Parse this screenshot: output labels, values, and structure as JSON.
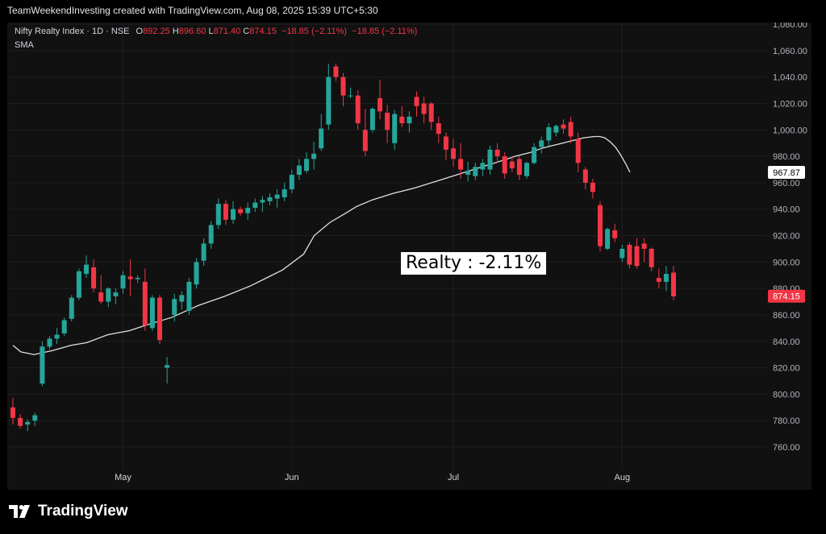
{
  "header": {
    "text": "TeamWeekendInvesting created with TradingView.com, Aug 08, 2025 15:39 UTC+5:30"
  },
  "legend": {
    "symbol": "Nifty Realty Index · 1D · NSE",
    "o_label": "O",
    "o_value": "892.25",
    "h_label": "H",
    "h_value": "896.60",
    "l_label": "L",
    "l_value": "871.40",
    "c_label": "C",
    "c_value": "874.15",
    "change": "−18.85 (−2.11%)",
    "change2": "−18.85 (−2.11%)",
    "indicator": "SMA"
  },
  "annotation": {
    "text": "Realty : -2.11%"
  },
  "footer": {
    "brand": "TradingView"
  },
  "colors": {
    "up": "#26a69a",
    "down": "#f23645",
    "sma": "#e0e0e0",
    "grid": "#1f1f1f",
    "background": "#111111"
  },
  "chart_data": {
    "type": "candlestick",
    "yaxis": {
      "min": 750,
      "max": 1080,
      "ticks": [
        "1,080.00",
        "1,060.00",
        "1,040.00",
        "1,020.00",
        "1,000.00",
        "980.00",
        "960.00",
        "940.00",
        "920.00",
        "900.00",
        "880.00",
        "860.00",
        "840.00",
        "820.00",
        "800.00",
        "780.00",
        "760.00"
      ]
    },
    "xaxis": {
      "ticks": [
        {
          "label": "May",
          "index": 15
        },
        {
          "label": "Jun",
          "index": 38
        },
        {
          "label": "Jul",
          "index": 60
        },
        {
          "label": "Aug",
          "index": 83
        }
      ]
    },
    "price_tags": [
      {
        "label": "967.87",
        "value": 967.87,
        "kind": "sma"
      },
      {
        "label": "874.15",
        "value": 874.15,
        "kind": "last"
      }
    ],
    "candles": [
      [
        790,
        797,
        777,
        782
      ],
      [
        782,
        785,
        774,
        776
      ],
      [
        777,
        781,
        772,
        779
      ],
      [
        780,
        786,
        776,
        784
      ],
      [
        808,
        840,
        806,
        836
      ],
      [
        836,
        844,
        834,
        842
      ],
      [
        842,
        850,
        838,
        845
      ],
      [
        846,
        858,
        844,
        856
      ],
      [
        857,
        875,
        855,
        873
      ],
      [
        873,
        895,
        871,
        893
      ],
      [
        891,
        905,
        888,
        898
      ],
      [
        896,
        902,
        877,
        880
      ],
      [
        877,
        890,
        868,
        870
      ],
      [
        870,
        881,
        866,
        880
      ],
      [
        874,
        880,
        868,
        877
      ],
      [
        880,
        893,
        876,
        890
      ],
      [
        889,
        902,
        874,
        887
      ],
      [
        887,
        890,
        884,
        888
      ],
      [
        885,
        895,
        848,
        852
      ],
      [
        850,
        875,
        848,
        873
      ],
      [
        873,
        875,
        838,
        841
      ],
      [
        820,
        828,
        808,
        822
      ],
      [
        860,
        876,
        855,
        872
      ],
      [
        870,
        878,
        864,
        875
      ],
      [
        863,
        888,
        860,
        885
      ],
      [
        883,
        903,
        880,
        900
      ],
      [
        901,
        918,
        897,
        914
      ],
      [
        914,
        931,
        910,
        928
      ],
      [
        928,
        948,
        925,
        944
      ],
      [
        944,
        947,
        928,
        932
      ],
      [
        932,
        946,
        929,
        940
      ],
      [
        940,
        942,
        935,
        937
      ],
      [
        937,
        945,
        932,
        941
      ],
      [
        941,
        948,
        938,
        945
      ],
      [
        945,
        950,
        938,
        947
      ],
      [
        946,
        952,
        943,
        949
      ],
      [
        948,
        955,
        941,
        951
      ],
      [
        949,
        960,
        946,
        955
      ],
      [
        955,
        970,
        952,
        966
      ],
      [
        966,
        978,
        962,
        973
      ],
      [
        969,
        983,
        967,
        978
      ],
      [
        978,
        991,
        970,
        982
      ],
      [
        986,
        1012,
        984,
        1001
      ],
      [
        1004,
        1050,
        1000,
        1040
      ],
      [
        1048,
        1050,
        1037,
        1040
      ],
      [
        1040,
        1043,
        1018,
        1026
      ],
      [
        1026,
        1032,
        1024,
        1026
      ],
      [
        1026,
        1030,
        1000,
        1005
      ],
      [
        1000,
        1016,
        980,
        984
      ],
      [
        1000,
        1017,
        998,
        1016
      ],
      [
        1024,
        1038,
        1008,
        1014
      ],
      [
        1013,
        1019,
        990,
        1000
      ],
      [
        990,
        1015,
        985,
        1012
      ],
      [
        1010,
        1018,
        1002,
        1005
      ],
      [
        1005,
        1014,
        998,
        1010
      ],
      [
        1025,
        1029,
        1010,
        1018
      ],
      [
        1020,
        1025,
        1005,
        1012
      ],
      [
        1020,
        1021,
        1000,
        1006
      ],
      [
        1005,
        1010,
        990,
        997
      ],
      [
        995,
        998,
        977,
        985
      ],
      [
        986,
        993,
        972,
        978
      ],
      [
        978,
        990,
        963,
        970
      ],
      [
        966,
        976,
        961,
        969
      ],
      [
        965,
        975,
        962,
        972
      ],
      [
        970,
        978,
        965,
        975
      ],
      [
        970,
        988,
        966,
        985
      ],
      [
        985,
        990,
        975,
        980
      ],
      [
        980,
        983,
        963,
        967
      ],
      [
        976,
        980,
        968,
        971
      ],
      [
        978,
        980,
        962,
        966
      ],
      [
        965,
        976,
        963,
        975
      ],
      [
        975,
        990,
        974,
        987
      ],
      [
        987,
        995,
        982,
        992
      ],
      [
        992,
        1005,
        988,
        1002
      ],
      [
        998,
        1004,
        995,
        1003
      ],
      [
        1004,
        1008,
        997,
        1001
      ],
      [
        1006,
        1010,
        990,
        995
      ],
      [
        993,
        998,
        968,
        975
      ],
      [
        970,
        972,
        955,
        960
      ],
      [
        960,
        963,
        948,
        953
      ],
      [
        943,
        946,
        908,
        912
      ],
      [
        910,
        926,
        909,
        925
      ],
      [
        924,
        929,
        915,
        918
      ],
      [
        903,
        913,
        900,
        910
      ],
      [
        913,
        915,
        895,
        898
      ],
      [
        912,
        918,
        895,
        897
      ],
      [
        914,
        918,
        900,
        910
      ],
      [
        910,
        911,
        893,
        896
      ],
      [
        888,
        895,
        880,
        885
      ],
      [
        885,
        897,
        878,
        891
      ],
      [
        892,
        897,
        871,
        874
      ]
    ],
    "sma": [
      [
        0,
        837
      ],
      [
        3,
        832
      ],
      [
        8,
        830
      ],
      [
        15,
        833
      ],
      [
        22,
        837
      ],
      [
        28,
        839
      ],
      [
        36,
        845
      ],
      [
        44,
        848
      ],
      [
        50,
        852
      ],
      [
        60,
        858
      ],
      [
        70,
        867
      ],
      [
        80,
        874
      ],
      [
        90,
        882
      ],
      [
        96,
        888
      ],
      [
        102,
        894
      ],
      [
        110,
        906
      ],
      [
        114,
        920
      ],
      [
        120,
        930
      ],
      [
        126,
        937
      ],
      [
        130,
        942
      ],
      [
        136,
        947
      ],
      [
        144,
        952
      ],
      [
        152,
        956
      ],
      [
        160,
        961
      ],
      [
        168,
        966
      ],
      [
        176,
        971
      ],
      [
        184,
        976
      ],
      [
        190,
        980
      ],
      [
        196,
        983
      ],
      [
        200,
        986
      ],
      [
        204,
        988
      ],
      [
        208,
        990
      ],
      [
        212,
        992
      ],
      [
        216,
        994
      ],
      [
        220,
        995
      ],
      [
        222,
        995
      ],
      [
        224,
        994
      ],
      [
        226,
        991
      ],
      [
        228,
        987
      ],
      [
        230,
        981
      ],
      [
        232,
        974
      ],
      [
        233.5,
        968
      ]
    ],
    "sma_domain": [
      0,
      233.5
    ]
  }
}
